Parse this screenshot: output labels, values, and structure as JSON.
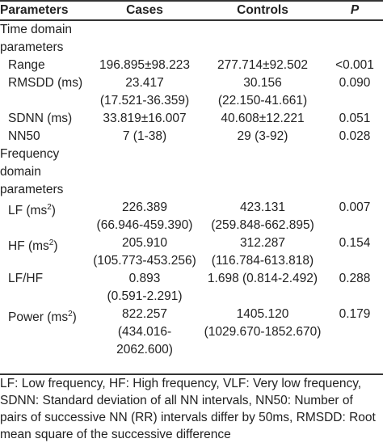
{
  "header": {
    "parameters": "Parameters",
    "cases": "Cases",
    "controls": "Controls",
    "p": "P"
  },
  "sections": {
    "time_domain": [
      "Time domain",
      "parameters"
    ],
    "frequency_domain": [
      "Frequency",
      "domain",
      "parameters"
    ]
  },
  "rows": {
    "range": {
      "label": "Range",
      "cases": "196.895±98.223",
      "controls": "277.714±92.502",
      "p": "<0.001"
    },
    "rmsdd": {
      "label": "RMSDD (ms)",
      "cases": [
        "23.417",
        "(17.521-36.359)"
      ],
      "controls": [
        "30.156",
        "(22.150-41.661)"
      ],
      "p": "0.090"
    },
    "sdnn": {
      "label": "SDNN (ms)",
      "cases": "33.819±16.007",
      "controls": "40.608±12.221",
      "p": "0.051"
    },
    "nn50": {
      "label": "NN50",
      "cases": "7 (1-38)",
      "controls": "29 (3-92)",
      "p": "0.028"
    },
    "lf": {
      "label": "LF (ms",
      "sup": "2",
      "label_end": ")",
      "cases": [
        "226.389",
        "(66.946-459.390)"
      ],
      "controls": [
        "423.131",
        "(259.848-662.895)"
      ],
      "p": "0.007"
    },
    "hf": {
      "label": "HF (ms",
      "sup": "2",
      "label_end": ")",
      "cases": [
        "205.910",
        "(105.773-453.256)"
      ],
      "controls": [
        "312.287",
        "(116.784-613.818)"
      ],
      "p": "0.154"
    },
    "lfhf": {
      "label": "LF/HF",
      "cases": [
        "0.893",
        "(0.591-2.291)"
      ],
      "controls": "1.698 (0.814-2.492)",
      "p": "0.288"
    },
    "power": {
      "label": "Power (ms",
      "sup": "2",
      "label_end": ")",
      "cases": [
        "822.257",
        "(434.016-2062.600)"
      ],
      "controls": [
        "1405.120",
        "(1029.670-1852.670)"
      ],
      "p": "0.179"
    }
  },
  "footnote": [
    "LF: Low frequency, HF: High frequency, VLF: Very low frequency,",
    "SDNN: Standard deviation of all NN intervals, NN50: Number of",
    "pairs of successive NN (RR) intervals differ by 50ms, RMSDD: Root",
    "mean square of the successive difference"
  ]
}
